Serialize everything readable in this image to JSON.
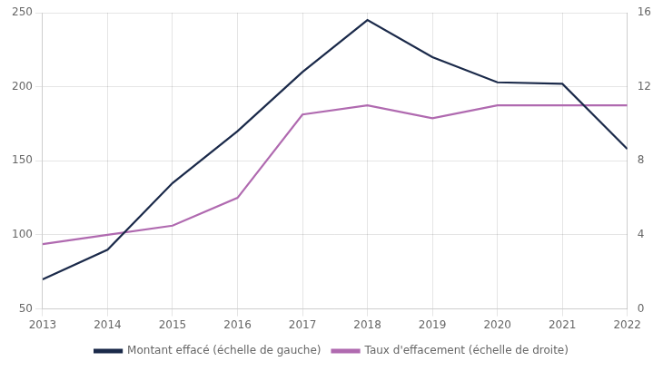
{
  "chart_data": {
    "type": "line",
    "x": [
      2013,
      2014,
      2015,
      2016,
      2017,
      2018,
      2019,
      2020,
      2021,
      2022
    ],
    "series": [
      {
        "name": "Montant effacé (échelle de gauche)",
        "color": "#1b2a4a",
        "values": [
          70,
          90,
          135,
          170,
          210,
          245,
          220,
          203,
          202,
          158
        ]
      },
      {
        "name": "Taux d'effacement (échelle de droite)",
        "color": "#b06ab0",
        "axis": "y2",
        "values": [
          3.5,
          4.0,
          4.5,
          6.0,
          10.5,
          11.0,
          10.3,
          11.0,
          11.0,
          11.0
        ]
      }
    ],
    "xlim": [
      2013,
      2022
    ],
    "xticks": [
      2013,
      2014,
      2015,
      2016,
      2017,
      2018,
      2019,
      2020,
      2021,
      2022
    ],
    "ylim": [
      50,
      250
    ],
    "yticks": [
      50,
      100,
      150,
      200,
      250
    ],
    "y2lim": [
      0,
      16
    ],
    "y2ticks": [
      0,
      4,
      8,
      12,
      16
    ],
    "grid": true,
    "legend": "bottom"
  }
}
